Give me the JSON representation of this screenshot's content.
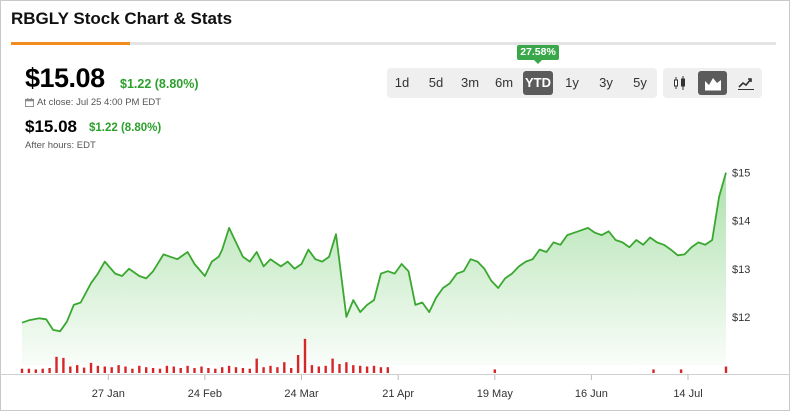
{
  "header": {
    "title": "RBGLY Stock Chart & Stats"
  },
  "quote": {
    "price": "$15.08",
    "change": "$1.22 (8.80%)",
    "close_label": "At close: Jul 25 4:00 PM EDT",
    "after_hours_price": "$15.08",
    "after_hours_change": "$1.22 (8.80%)",
    "after_hours_label": "After hours: EDT"
  },
  "ranges": {
    "items": [
      "1d",
      "5d",
      "3m",
      "6m",
      "YTD",
      "1y",
      "3y",
      "5y"
    ],
    "selected": "YTD",
    "ytd_badge": "27.58%"
  },
  "chart_types": [
    {
      "name": "candlestick-icon",
      "active": false
    },
    {
      "name": "mountain-chart-icon",
      "active": true
    },
    {
      "name": "line-chart-icon",
      "active": false
    }
  ],
  "colors": {
    "accent": "#f28c1e",
    "up": "#2ca02c",
    "line": "#3aa830",
    "volume": "#d62728"
  },
  "chart_data": {
    "type": "area",
    "title": "",
    "xlabel": "",
    "ylabel": "",
    "ylim": [
      11.0,
      15.2
    ],
    "y_ticks": [
      {
        "value": 12,
        "label": "$12"
      },
      {
        "value": 13,
        "label": "$13"
      },
      {
        "value": 14,
        "label": "$14"
      },
      {
        "value": 15,
        "label": "$15"
      }
    ],
    "x_ticks": [
      {
        "date": "2025-01-27",
        "label": "27 Jan"
      },
      {
        "date": "2025-02-24",
        "label": "24 Feb"
      },
      {
        "date": "2025-03-24",
        "label": "24 Mar"
      },
      {
        "date": "2025-04-21",
        "label": "21 Apr"
      },
      {
        "date": "2025-05-19",
        "label": "19 May"
      },
      {
        "date": "2025-06-16",
        "label": "16 Jun"
      },
      {
        "date": "2025-07-14",
        "label": "14 Jul"
      }
    ],
    "x_range": [
      "2025-01-02",
      "2025-07-25"
    ],
    "series": [
      {
        "points": [
          [
            "2025-01-02",
            11.88
          ],
          [
            "2025-01-04",
            11.93
          ],
          [
            "2025-01-07",
            11.97
          ],
          [
            "2025-01-09",
            11.95
          ],
          [
            "2025-01-11",
            11.73
          ],
          [
            "2025-01-13",
            11.7
          ],
          [
            "2025-01-15",
            11.9
          ],
          [
            "2025-01-17",
            12.25
          ],
          [
            "2025-01-19",
            12.3
          ],
          [
            "2025-01-22",
            12.7
          ],
          [
            "2025-01-24",
            12.9
          ],
          [
            "2025-01-26",
            13.15
          ],
          [
            "2025-01-29",
            12.9
          ],
          [
            "2025-01-31",
            12.85
          ],
          [
            "2025-02-02",
            13.0
          ],
          [
            "2025-02-05",
            12.85
          ],
          [
            "2025-02-07",
            12.8
          ],
          [
            "2025-02-09",
            12.95
          ],
          [
            "2025-02-12",
            13.3
          ],
          [
            "2025-02-14",
            13.25
          ],
          [
            "2025-02-16",
            13.2
          ],
          [
            "2025-02-19",
            13.35
          ],
          [
            "2025-02-21",
            13.1
          ],
          [
            "2025-02-24",
            12.85
          ],
          [
            "2025-02-26",
            13.15
          ],
          [
            "2025-02-28",
            13.25
          ],
          [
            "2025-03-01",
            13.4
          ],
          [
            "2025-03-03",
            13.85
          ],
          [
            "2025-03-05",
            13.55
          ],
          [
            "2025-03-07",
            13.25
          ],
          [
            "2025-03-09",
            13.15
          ],
          [
            "2025-03-11",
            13.35
          ],
          [
            "2025-03-13",
            13.05
          ],
          [
            "2025-03-15",
            13.2
          ],
          [
            "2025-03-18",
            13.05
          ],
          [
            "2025-03-20",
            13.15
          ],
          [
            "2025-03-22",
            13.0
          ],
          [
            "2025-03-24",
            13.1
          ],
          [
            "2025-03-26",
            13.4
          ],
          [
            "2025-03-28",
            13.2
          ],
          [
            "2025-03-30",
            13.15
          ],
          [
            "2025-04-01",
            13.25
          ],
          [
            "2025-04-03",
            13.72
          ],
          [
            "2025-04-06",
            12.0
          ],
          [
            "2025-04-08",
            12.35
          ],
          [
            "2025-04-10",
            12.1
          ],
          [
            "2025-04-12",
            12.25
          ],
          [
            "2025-04-14",
            12.35
          ],
          [
            "2025-04-16",
            12.9
          ],
          [
            "2025-04-18",
            12.95
          ],
          [
            "2025-04-20",
            12.9
          ],
          [
            "2025-04-22",
            13.1
          ],
          [
            "2025-04-24",
            12.95
          ],
          [
            "2025-04-26",
            12.25
          ],
          [
            "2025-04-28",
            12.3
          ],
          [
            "2025-04-30",
            12.1
          ],
          [
            "2025-05-02",
            12.4
          ],
          [
            "2025-05-04",
            12.6
          ],
          [
            "2025-05-06",
            12.7
          ],
          [
            "2025-05-08",
            12.9
          ],
          [
            "2025-05-10",
            12.95
          ],
          [
            "2025-05-12",
            13.2
          ],
          [
            "2025-05-14",
            13.15
          ],
          [
            "2025-05-16",
            13.0
          ],
          [
            "2025-05-18",
            12.75
          ],
          [
            "2025-05-20",
            12.6
          ],
          [
            "2025-05-22",
            12.8
          ],
          [
            "2025-05-24",
            12.9
          ],
          [
            "2025-05-26",
            13.05
          ],
          [
            "2025-05-28",
            13.15
          ],
          [
            "2025-05-30",
            13.2
          ],
          [
            "2025-06-01",
            13.4
          ],
          [
            "2025-06-03",
            13.35
          ],
          [
            "2025-06-05",
            13.55
          ],
          [
            "2025-06-07",
            13.5
          ],
          [
            "2025-06-09",
            13.7
          ],
          [
            "2025-06-11",
            13.75
          ],
          [
            "2025-06-13",
            13.8
          ],
          [
            "2025-06-15",
            13.85
          ],
          [
            "2025-06-17",
            13.75
          ],
          [
            "2025-06-19",
            13.7
          ],
          [
            "2025-06-21",
            13.78
          ],
          [
            "2025-06-23",
            13.6
          ],
          [
            "2025-06-25",
            13.55
          ],
          [
            "2025-06-27",
            13.45
          ],
          [
            "2025-06-29",
            13.6
          ],
          [
            "2025-07-01",
            13.5
          ],
          [
            "2025-07-03",
            13.65
          ],
          [
            "2025-07-05",
            13.55
          ],
          [
            "2025-07-07",
            13.5
          ],
          [
            "2025-07-09",
            13.4
          ],
          [
            "2025-07-11",
            13.28
          ],
          [
            "2025-07-13",
            13.3
          ],
          [
            "2025-07-15",
            13.45
          ],
          [
            "2025-07-17",
            13.55
          ],
          [
            "2025-07-19",
            13.5
          ],
          [
            "2025-07-21",
            13.6
          ],
          [
            "2025-07-23",
            14.5
          ],
          [
            "2025-07-25",
            15.0
          ]
        ]
      }
    ],
    "volume": {
      "ylim": [
        0,
        1
      ],
      "bars": [
        [
          "2025-01-02",
          0.12
        ],
        [
          "2025-01-04",
          0.12
        ],
        [
          "2025-01-06",
          0.1
        ],
        [
          "2025-01-08",
          0.12
        ],
        [
          "2025-01-10",
          0.14
        ],
        [
          "2025-01-12",
          0.45
        ],
        [
          "2025-01-14",
          0.42
        ],
        [
          "2025-01-16",
          0.18
        ],
        [
          "2025-01-18",
          0.22
        ],
        [
          "2025-01-20",
          0.15
        ],
        [
          "2025-01-22",
          0.28
        ],
        [
          "2025-01-24",
          0.2
        ],
        [
          "2025-01-26",
          0.18
        ],
        [
          "2025-01-28",
          0.16
        ],
        [
          "2025-01-30",
          0.22
        ],
        [
          "2025-02-01",
          0.18
        ],
        [
          "2025-02-03",
          0.12
        ],
        [
          "2025-02-05",
          0.2
        ],
        [
          "2025-02-07",
          0.16
        ],
        [
          "2025-02-09",
          0.14
        ],
        [
          "2025-02-11",
          0.12
        ],
        [
          "2025-02-13",
          0.2
        ],
        [
          "2025-02-15",
          0.18
        ],
        [
          "2025-02-17",
          0.14
        ],
        [
          "2025-02-19",
          0.2
        ],
        [
          "2025-02-21",
          0.14
        ],
        [
          "2025-02-23",
          0.18
        ],
        [
          "2025-02-25",
          0.14
        ],
        [
          "2025-02-27",
          0.12
        ],
        [
          "2025-03-01",
          0.16
        ],
        [
          "2025-03-03",
          0.2
        ],
        [
          "2025-03-05",
          0.16
        ],
        [
          "2025-03-07",
          0.14
        ],
        [
          "2025-03-09",
          0.12
        ],
        [
          "2025-03-11",
          0.4
        ],
        [
          "2025-03-13",
          0.16
        ],
        [
          "2025-03-15",
          0.2
        ],
        [
          "2025-03-17",
          0.16
        ],
        [
          "2025-03-19",
          0.3
        ],
        [
          "2025-03-21",
          0.14
        ],
        [
          "2025-03-23",
          0.5
        ],
        [
          "2025-03-25",
          0.95
        ],
        [
          "2025-03-27",
          0.22
        ],
        [
          "2025-03-29",
          0.18
        ],
        [
          "2025-03-31",
          0.2
        ],
        [
          "2025-04-02",
          0.4
        ],
        [
          "2025-04-04",
          0.25
        ],
        [
          "2025-04-06",
          0.3
        ],
        [
          "2025-04-08",
          0.22
        ],
        [
          "2025-04-10",
          0.2
        ],
        [
          "2025-04-12",
          0.18
        ],
        [
          "2025-04-14",
          0.2
        ],
        [
          "2025-04-16",
          0.16
        ],
        [
          "2025-04-18",
          0.16
        ],
        [
          "2025-05-19",
          0.1
        ],
        [
          "2025-07-04",
          0.1
        ],
        [
          "2025-07-12",
          0.1
        ],
        [
          "2025-07-25",
          0.18
        ]
      ]
    }
  }
}
